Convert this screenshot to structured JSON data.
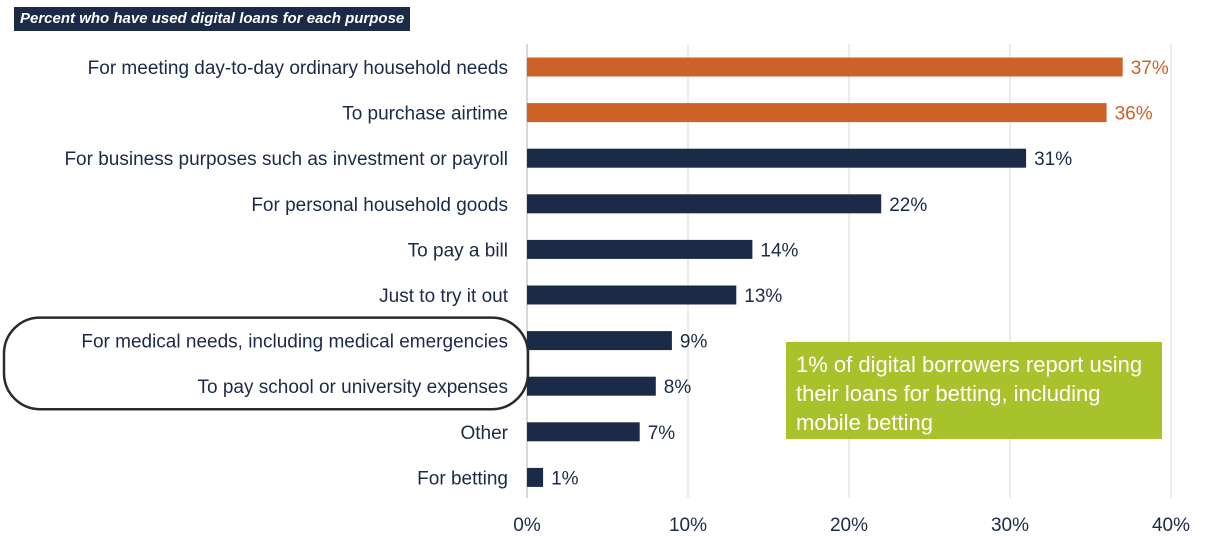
{
  "chart_data": {
    "type": "bar",
    "orientation": "horizontal",
    "title": "Percent who have used digital loans for each purpose",
    "categories": [
      "For meeting day-to-day ordinary household needs",
      "To purchase airtime",
      "For business purposes such as investment or payroll",
      "For personal household goods",
      "To pay a bill",
      "Just to try it out",
      "For medical needs, including medical emergencies",
      "To pay school or university expenses",
      "Other",
      "For betting"
    ],
    "values": [
      37,
      36,
      31,
      22,
      14,
      13,
      9,
      8,
      7,
      1
    ],
    "value_labels": [
      "37%",
      "36%",
      "31%",
      "22%",
      "14%",
      "13%",
      "9%",
      "8%",
      "7%",
      "1%"
    ],
    "highlight": [
      true,
      true,
      false,
      false,
      false,
      false,
      false,
      false,
      false,
      false
    ],
    "xlim": [
      0,
      40
    ],
    "xticks": [
      0,
      10,
      20,
      30,
      40
    ],
    "xtick_labels": [
      "0%",
      "10%",
      "20%",
      "30%",
      "40%"
    ],
    "grid": true,
    "colors": {
      "default": "#1b2a47",
      "highlight": "#cc6227",
      "grid": "#d9d9d9",
      "circle": "#2a2a2a"
    },
    "circled_categories": [
      6,
      7
    ],
    "annotation": "1% of digital borrowers report using their loans for betting, including mobile betting"
  },
  "note_color": "#a8c22b"
}
